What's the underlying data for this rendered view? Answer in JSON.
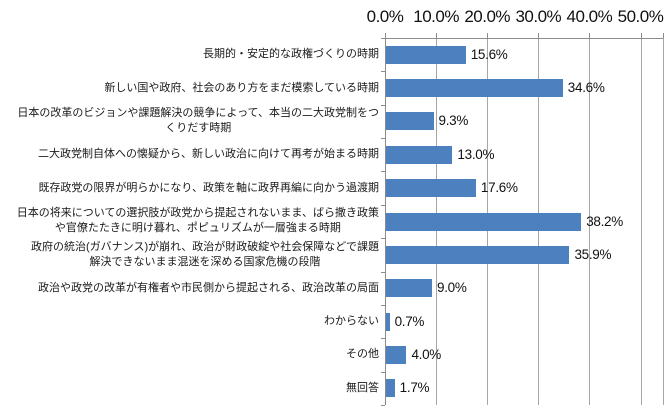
{
  "chart_data": {
    "type": "bar",
    "orientation": "horizontal",
    "title": "",
    "categories": [
      "長期的・安定的な政権づくりの時期",
      "新しい国や政府、社会のあり方をまだ模索している時期",
      "日本の改革のビジョンや課題解決の競争によって、本当の二大政党制をつ\nくりだす時期",
      "二大政党制自体への懐疑から、新しい政治に向けて再考が始まる時期",
      "既存政党の限界が明らかになり、政策を軸に政界再編に向かう過渡期",
      "日本の将来についての選択肢が政党から提起されないまま、ばら撒き政策\nや官僚たたきに明け暮れ、ポピュリズムが一層強まる時期",
      "政府の統治(ガバナンス)が崩れ、政治が財政破綻や社会保障などで課題\n解決できないまま混迷を深める国家危機の段階",
      "政治や政党の改革が有権者や市民側から提起される、政治改革の局面",
      "わからない",
      "その他",
      "無回答"
    ],
    "values": [
      15.6,
      34.6,
      9.3,
      13.0,
      17.6,
      38.2,
      35.9,
      9.0,
      0.7,
      4.0,
      1.7
    ],
    "data_labels": [
      "15.6%",
      "34.6%",
      "9.3%",
      "13.0%",
      "17.6%",
      "38.2%",
      "35.9%",
      "9.0%",
      "0.7%",
      "4.0%",
      "1.7%"
    ],
    "value_axis": {
      "position": "top",
      "tick_labels": [
        "0.0%",
        "10.0%",
        "20.0%",
        "30.0%",
        "40.0%",
        "50.0%"
      ],
      "tick_values": [
        0,
        10,
        20,
        30,
        40,
        50
      ],
      "max": 54.2
    },
    "grid": true,
    "legend": false,
    "colors": {
      "bar": "#4d80be",
      "gridline": "#a6a6a6",
      "axis_line": "#8c8c8c",
      "text": "#000000"
    }
  }
}
